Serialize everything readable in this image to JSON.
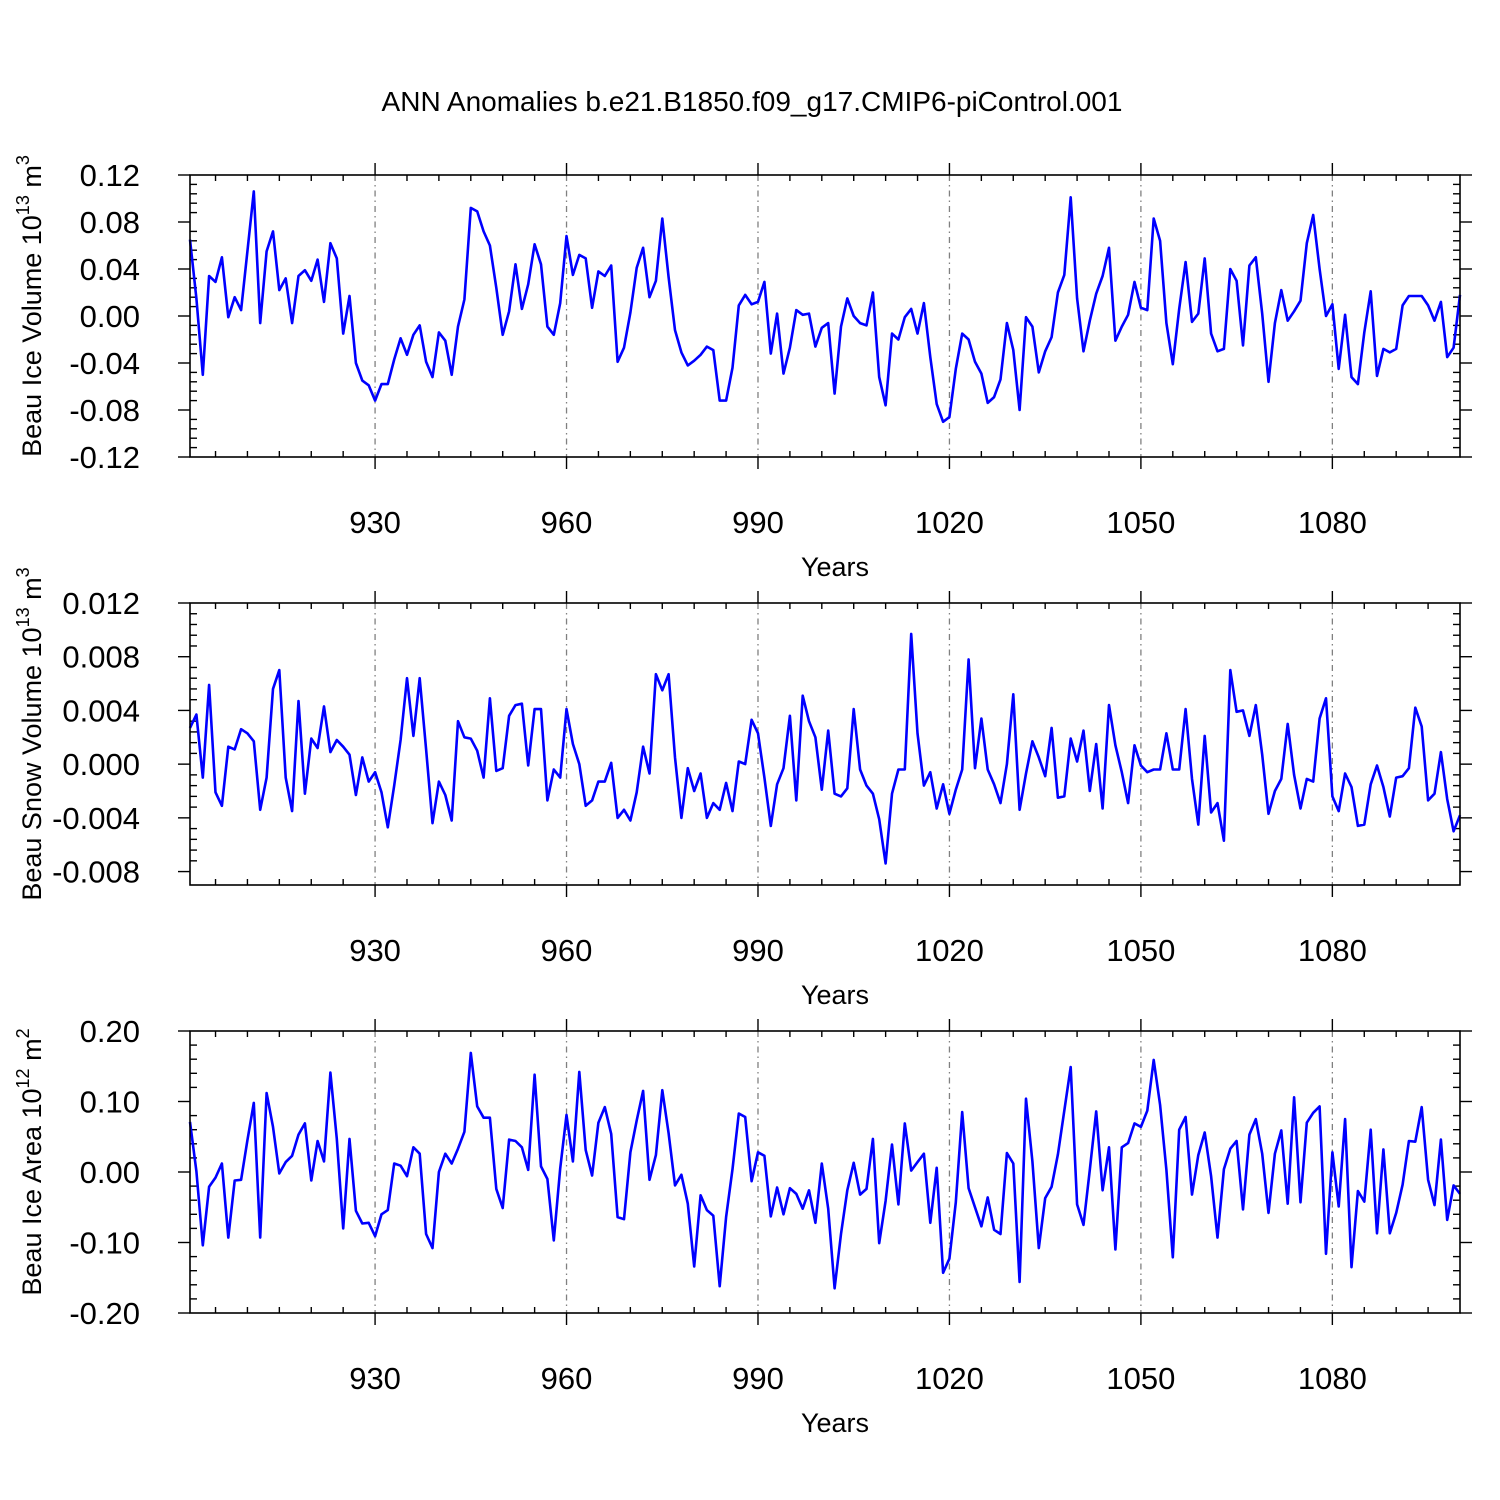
{
  "title": "ANN Anomalies b.e21.B1850.f09_g17.CMIP6-piControl.001",
  "colors": {
    "series": "#0000ff",
    "axes": "#000000",
    "grid": "#808080"
  },
  "chart_data": [
    {
      "type": "line",
      "ylabel": {
        "main": "Beau Ice Volume 10",
        "exp": "13",
        "unit": " m",
        "unit_exp": "3"
      },
      "xlabel": "Years",
      "xlim": [
        901,
        1100
      ],
      "ylim": [
        -0.12,
        0.12
      ],
      "xticks": [
        930,
        960,
        990,
        1020,
        1050,
        1080
      ],
      "xtick_labels": [
        "930",
        "960",
        "990",
        "1020",
        "1050",
        "1080"
      ],
      "yticks": [
        -0.12,
        -0.08,
        -0.04,
        0.0,
        0.04,
        0.08,
        0.12
      ],
      "ytick_labels": [
        "-0.12",
        "-0.08",
        "-0.04",
        "0.00",
        "0.04",
        "0.08",
        "0.12"
      ],
      "grid": "vertical dashed at major x ticks",
      "series": [
        {
          "x_start": 901,
          "values": [
            0.065,
            0.015,
            -0.05,
            0.034,
            0.029,
            0.05,
            -0.001,
            0.016,
            0.005,
            0.055,
            0.106,
            -0.006,
            0.055,
            0.072,
            0.022,
            0.032,
            -0.006,
            0.034,
            0.039,
            0.03,
            0.048,
            0.012,
            0.062,
            0.049,
            -0.015,
            0.017,
            -0.04,
            -0.055,
            -0.059,
            -0.072,
            -0.058,
            -0.058,
            -0.037,
            -0.019,
            -0.033,
            -0.016,
            -0.008,
            -0.039,
            -0.052,
            -0.014,
            -0.021,
            -0.05,
            -0.009,
            0.014,
            0.092,
            0.089,
            0.072,
            0.06,
            0.024,
            -0.016,
            0.004,
            0.044,
            0.006,
            0.027,
            0.061,
            0.044,
            -0.009,
            -0.016,
            0.011,
            0.068,
            0.035,
            0.052,
            0.049,
            0.007,
            0.038,
            0.034,
            0.043,
            -0.039,
            -0.027,
            0.003,
            0.041,
            0.058,
            0.016,
            0.03,
            0.083,
            0.033,
            -0.012,
            -0.031,
            -0.042,
            -0.038,
            -0.033,
            -0.026,
            -0.029,
            -0.072,
            -0.072,
            -0.044,
            0.009,
            0.018,
            0.01,
            0.012,
            0.029,
            -0.032,
            0.002,
            -0.049,
            -0.027,
            0.005,
            0.001,
            0.002,
            -0.026,
            -0.01,
            -0.006,
            -0.066,
            -0.009,
            0.015,
            0.0,
            -0.006,
            -0.008,
            0.02,
            -0.052,
            -0.076,
            -0.015,
            -0.02,
            -0.001,
            0.006,
            -0.015,
            0.011,
            -0.035,
            -0.075,
            -0.09,
            -0.086,
            -0.045,
            -0.015,
            -0.02,
            -0.039,
            -0.049,
            -0.074,
            -0.069,
            -0.054,
            -0.006,
            -0.029,
            -0.08,
            -0.001,
            -0.009,
            -0.048,
            -0.03,
            -0.018,
            0.02,
            0.035,
            0.101,
            0.015,
            -0.03,
            -0.004,
            0.019,
            0.034,
            0.058,
            -0.021,
            -0.009,
            0.001,
            0.029,
            0.007,
            0.005,
            0.083,
            0.064,
            -0.006,
            -0.041,
            0.006,
            0.046,
            -0.005,
            0.002,
            0.049,
            -0.015,
            -0.03,
            -0.028,
            0.04,
            0.03,
            -0.025,
            0.043,
            0.05,
            0.002,
            -0.056,
            -0.006,
            0.022,
            -0.004,
            0.004,
            0.013,
            0.062,
            0.086,
            0.04,
            0.0,
            0.01,
            -0.045,
            0.001,
            -0.052,
            -0.058,
            -0.014,
            0.021,
            -0.051,
            -0.028,
            -0.031,
            -0.028,
            0.009,
            0.017,
            0.017,
            0.017,
            0.009,
            -0.004,
            0.012,
            -0.035,
            -0.027,
            0.018
          ]
        }
      ]
    },
    {
      "type": "line",
      "ylabel": {
        "main": "Beau Snow Volume 10",
        "exp": "13",
        "unit": " m",
        "unit_exp": "3"
      },
      "xlabel": "Years",
      "xlim": [
        901,
        1100
      ],
      "ylim": [
        -0.009,
        0.012
      ],
      "xticks": [
        930,
        960,
        990,
        1020,
        1050,
        1080
      ],
      "xtick_labels": [
        "930",
        "960",
        "990",
        "1020",
        "1050",
        "1080"
      ],
      "yticks": [
        -0.008,
        -0.004,
        0.0,
        0.004,
        0.008,
        0.012
      ],
      "ytick_labels": [
        "-0.008",
        "-0.004",
        "0.000",
        "0.004",
        "0.008",
        "0.012"
      ],
      "grid": "vertical dashed at major x ticks",
      "series": [
        {
          "x_start": 901,
          "values": [
            0.0027,
            0.0037,
            -0.001,
            0.0059,
            -0.0021,
            -0.0031,
            0.0013,
            0.0011,
            0.0026,
            0.0023,
            0.0017,
            -0.0034,
            -0.001,
            0.0056,
            0.007,
            -0.001,
            -0.0035,
            0.0047,
            -0.0022,
            0.0019,
            0.0012,
            0.0043,
            0.0009,
            0.0018,
            0.0013,
            0.0007,
            -0.0023,
            0.0005,
            -0.0013,
            -0.0006,
            -0.0021,
            -0.0047,
            -0.0016,
            0.0018,
            0.0064,
            0.0021,
            0.0064,
            0.0011,
            -0.0044,
            -0.0013,
            -0.0023,
            -0.0042,
            0.0032,
            0.002,
            0.0019,
            0.001,
            -0.001,
            0.0049,
            -0.0005,
            -0.0003,
            0.0036,
            0.0044,
            0.0045,
            -0.0001,
            0.0041,
            0.0041,
            -0.0027,
            -0.0004,
            -0.001,
            0.0041,
            0.0015,
            0.0,
            -0.0031,
            -0.0027,
            -0.0013,
            -0.0013,
            0.0001,
            -0.004,
            -0.0034,
            -0.0042,
            -0.0021,
            0.0013,
            -0.0007,
            0.0067,
            0.0055,
            0.0067,
            0.0005,
            -0.004,
            -0.0003,
            -0.002,
            -0.0007,
            -0.004,
            -0.0029,
            -0.0034,
            -0.0014,
            -0.0035,
            0.0002,
            0.0,
            0.0033,
            0.0023,
            -0.001,
            -0.0046,
            -0.0015,
            -0.0003,
            0.0036,
            -0.0027,
            0.0051,
            0.0032,
            0.002,
            -0.0019,
            0.0025,
            -0.0022,
            -0.0024,
            -0.0018,
            0.0041,
            -0.0004,
            -0.0016,
            -0.0022,
            -0.0041,
            -0.0074,
            -0.0022,
            -0.0004,
            -0.0004,
            0.0097,
            0.0023,
            -0.0016,
            -0.0006,
            -0.0033,
            -0.0015,
            -0.0037,
            -0.0019,
            -0.0004,
            0.0078,
            -0.0003,
            0.0034,
            -0.0004,
            -0.0015,
            -0.0029,
            0.0,
            0.0052,
            -0.0034,
            -0.0007,
            0.0017,
            0.0005,
            -0.0009,
            0.0027,
            -0.0025,
            -0.0024,
            0.0019,
            0.0002,
            0.0025,
            -0.002,
            0.0015,
            -0.0033,
            0.0044,
            0.0014,
            -0.0006,
            -0.0029,
            0.0014,
            -0.0001,
            -0.0006,
            -0.0004,
            -0.0004,
            0.0023,
            -0.0004,
            -0.0004,
            0.0041,
            -0.0011,
            -0.0045,
            0.0021,
            -0.0036,
            -0.0029,
            -0.0057,
            0.007,
            0.0039,
            0.004,
            0.0021,
            0.0044,
            0.0007,
            -0.0037,
            -0.002,
            -0.0011,
            0.003,
            -0.0008,
            -0.0033,
            -0.0011,
            -0.0013,
            0.0034,
            0.0049,
            -0.0024,
            -0.0035,
            -0.0007,
            -0.0017,
            -0.0046,
            -0.0045,
            -0.0015,
            -0.0001,
            -0.0017,
            -0.0039,
            -0.001,
            -0.0009,
            -0.0003,
            0.0042,
            0.0028,
            -0.0027,
            -0.0022,
            0.0009,
            -0.0026,
            -0.005,
            -0.0038
          ]
        }
      ]
    },
    {
      "type": "line",
      "ylabel": {
        "main": "Beau Ice Area 10",
        "exp": "12",
        "unit": " m",
        "unit_exp": "2"
      },
      "xlabel": "Years",
      "xlim": [
        901,
        1100
      ],
      "ylim": [
        -0.2,
        0.2
      ],
      "xticks": [
        930,
        960,
        990,
        1020,
        1050,
        1080
      ],
      "xtick_labels": [
        "930",
        "960",
        "990",
        "1020",
        "1050",
        "1080"
      ],
      "yticks": [
        -0.2,
        -0.1,
        0.0,
        0.1,
        0.2
      ],
      "ytick_labels": [
        "-0.20",
        "-0.10",
        "0.00",
        "0.10",
        "0.20"
      ],
      "grid": "vertical dashed at major x ticks",
      "series": [
        {
          "x_start": 901,
          "values": [
            0.071,
            0.001,
            -0.104,
            -0.021,
            -0.008,
            0.012,
            -0.093,
            -0.012,
            -0.011,
            0.045,
            0.098,
            -0.093,
            0.112,
            0.064,
            -0.002,
            0.014,
            0.023,
            0.053,
            0.069,
            -0.012,
            0.044,
            0.015,
            0.141,
            0.047,
            -0.08,
            0.047,
            -0.055,
            -0.073,
            -0.072,
            -0.091,
            -0.06,
            -0.054,
            0.012,
            0.009,
            -0.006,
            0.035,
            0.026,
            -0.088,
            -0.108,
            0.0,
            0.026,
            0.012,
            0.033,
            0.057,
            0.169,
            0.093,
            0.077,
            0.077,
            -0.024,
            -0.051,
            0.046,
            0.044,
            0.035,
            0.003,
            0.138,
            0.008,
            -0.01,
            -0.097,
            0.005,
            0.081,
            0.015,
            0.142,
            0.031,
            -0.005,
            0.07,
            0.092,
            0.054,
            -0.064,
            -0.067,
            0.028,
            0.073,
            0.115,
            -0.011,
            0.024,
            0.116,
            0.055,
            -0.019,
            -0.004,
            -0.045,
            -0.134,
            -0.033,
            -0.054,
            -0.062,
            -0.162,
            -0.064,
            0.004,
            0.083,
            0.078,
            -0.013,
            0.028,
            0.023,
            -0.063,
            -0.022,
            -0.06,
            -0.023,
            -0.031,
            -0.052,
            -0.026,
            -0.072,
            0.012,
            -0.052,
            -0.165,
            -0.088,
            -0.026,
            0.013,
            -0.032,
            -0.024,
            0.047,
            -0.101,
            -0.041,
            0.039,
            -0.046,
            0.069,
            0.002,
            0.014,
            0.026,
            -0.072,
            0.006,
            -0.143,
            -0.123,
            -0.043,
            0.085,
            -0.023,
            -0.05,
            -0.077,
            -0.036,
            -0.082,
            -0.088,
            0.027,
            0.012,
            -0.156,
            0.104,
            0.015,
            -0.108,
            -0.037,
            -0.021,
            0.025,
            0.087,
            0.149,
            -0.046,
            -0.075,
            0.003,
            0.086,
            -0.026,
            0.035,
            -0.11,
            0.035,
            0.041,
            0.069,
            0.064,
            0.087,
            0.159,
            0.095,
            0.003,
            -0.121,
            0.06,
            0.078,
            -0.032,
            0.024,
            0.056,
            -0.006,
            -0.093,
            0.004,
            0.033,
            0.044,
            -0.053,
            0.053,
            0.075,
            0.026,
            -0.058,
            0.026,
            0.059,
            -0.045,
            0.106,
            -0.043,
            0.07,
            0.084,
            0.093,
            -0.116,
            0.028,
            -0.049,
            0.075,
            -0.135,
            -0.027,
            -0.042,
            0.06,
            -0.087,
            0.032,
            -0.087,
            -0.058,
            -0.018,
            0.044,
            0.043,
            0.092,
            -0.011,
            -0.047,
            0.046,
            -0.068,
            -0.019,
            -0.031
          ]
        }
      ]
    }
  ]
}
